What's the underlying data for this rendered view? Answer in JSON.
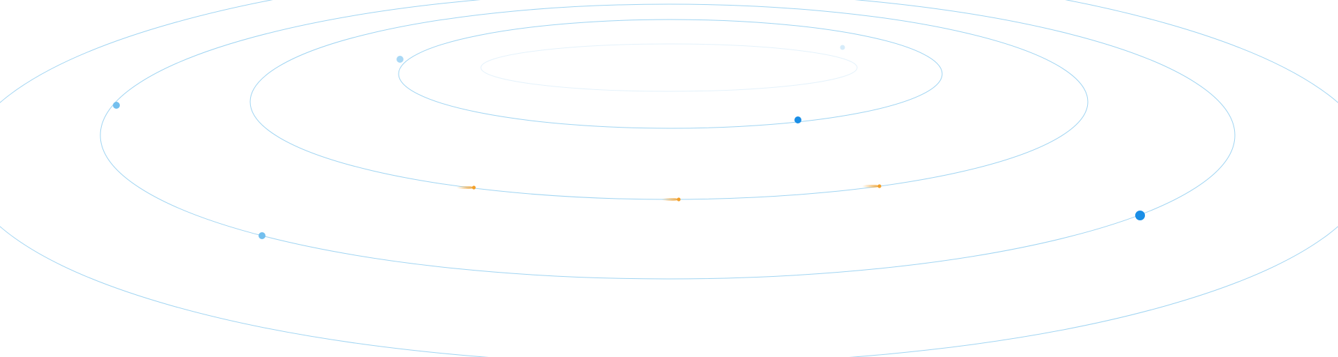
{
  "colors": {
    "background": "#ffffff",
    "orbit_line": "#9fd4f2",
    "orbit_line_faint": "#e4f2fb",
    "dot_strong": "#1a8ee6",
    "dot_medium": "#73bfee",
    "dot_light": "#a9d8f5",
    "dot_faint": "#d6ecfa",
    "comet": "#f3a02a"
  },
  "orbits": [
    {
      "name": "orbit-innermost",
      "tone": "faint",
      "dots": []
    },
    {
      "name": "orbit-inner",
      "tone": "line",
      "dots": [
        {
          "name": "dot",
          "tone": "light",
          "size": "small"
        },
        {
          "name": "dot",
          "tone": "faint",
          "size": "tiny"
        },
        {
          "name": "dot",
          "tone": "strong",
          "size": "small"
        }
      ]
    },
    {
      "name": "orbit-middle",
      "tone": "line",
      "dots": [
        {
          "name": "comet",
          "tone": "comet",
          "size": "comet"
        },
        {
          "name": "comet",
          "tone": "comet",
          "size": "comet"
        },
        {
          "name": "comet",
          "tone": "comet",
          "size": "comet"
        }
      ]
    },
    {
      "name": "orbit-outer",
      "tone": "line",
      "dots": [
        {
          "name": "dot",
          "tone": "medium",
          "size": "small"
        },
        {
          "name": "dot",
          "tone": "medium",
          "size": "small"
        },
        {
          "name": "dot",
          "tone": "strong",
          "size": "large"
        }
      ]
    },
    {
      "name": "orbit-outermost",
      "tone": "line",
      "dots": []
    }
  ]
}
